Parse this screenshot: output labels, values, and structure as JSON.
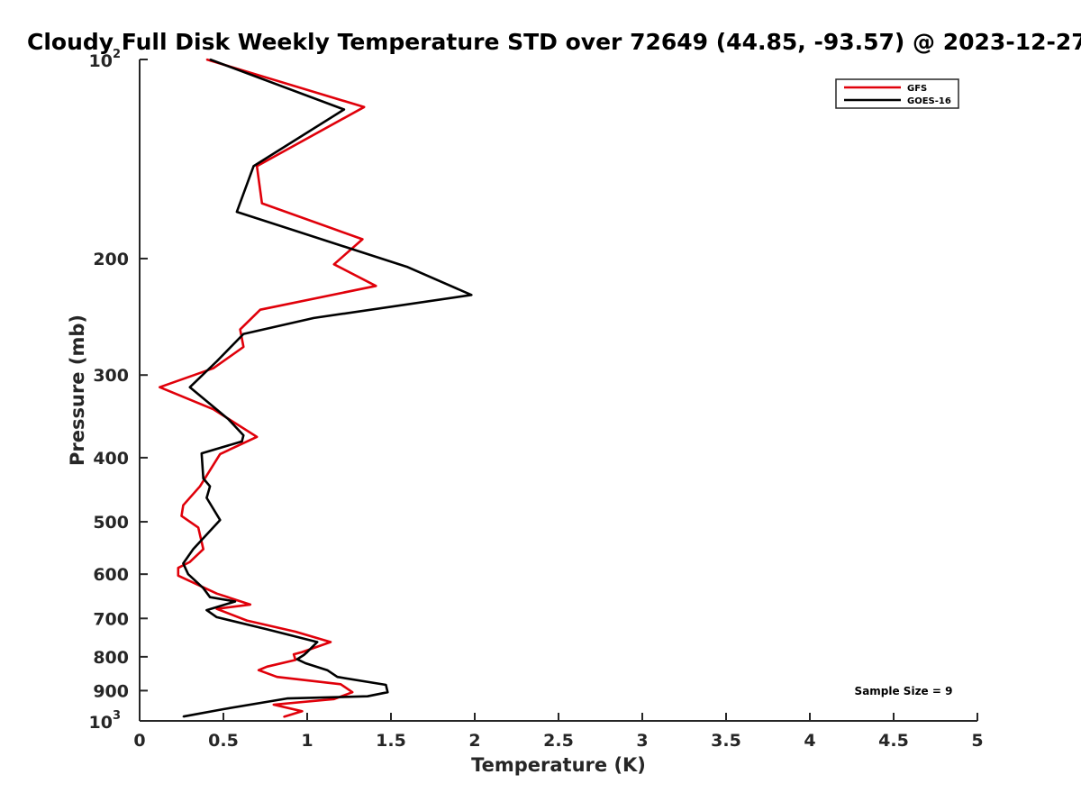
{
  "chart_data": {
    "type": "line",
    "title": "Cloudy Full Disk Weekly Temperature STD over 72649 (44.85, -93.57) @ 2023-12-27",
    "xlabel": "Temperature (K)",
    "ylabel": "Pressure (mb)",
    "xlim": [
      0,
      5
    ],
    "ylim": [
      100,
      1000
    ],
    "y_scale": "log",
    "y_reversed": true,
    "grid": false,
    "legend_position": "top-right",
    "x_ticks": [
      "0",
      "0.5",
      "1",
      "1.5",
      "2",
      "2.5",
      "3",
      "3.5",
      "4",
      "4.5",
      "5"
    ],
    "x_tick_values": [
      0,
      0.5,
      1,
      1.5,
      2,
      2.5,
      3,
      3.5,
      4,
      4.5,
      5
    ],
    "y_ticks": [
      {
        "value": 100,
        "base": "10",
        "exp": "2"
      },
      {
        "value": 200,
        "label": "200"
      },
      {
        "value": 300,
        "label": "300"
      },
      {
        "value": 400,
        "label": "400"
      },
      {
        "value": 500,
        "label": "500"
      },
      {
        "value": 600,
        "label": "600"
      },
      {
        "value": 700,
        "label": "700"
      },
      {
        "value": 800,
        "label": "800"
      },
      {
        "value": 900,
        "label": "900"
      },
      {
        "value": 1000,
        "base": "10",
        "exp": "3"
      }
    ],
    "annotation": "Sample Size = 9",
    "series": [
      {
        "name": "GFS",
        "color": "#e0000a",
        "points": [
          [
            0.4,
            100
          ],
          [
            1.34,
            118
          ],
          [
            0.7,
            145
          ],
          [
            0.73,
            165
          ],
          [
            1.33,
            187
          ],
          [
            1.16,
            204
          ],
          [
            1.41,
            220
          ],
          [
            0.72,
            239
          ],
          [
            0.6,
            256
          ],
          [
            0.62,
            272
          ],
          [
            0.44,
            293
          ],
          [
            0.12,
            313
          ],
          [
            0.44,
            338
          ],
          [
            0.7,
            372
          ],
          [
            0.48,
            395
          ],
          [
            0.36,
            442
          ],
          [
            0.26,
            472
          ],
          [
            0.25,
            490
          ],
          [
            0.35,
            510
          ],
          [
            0.38,
            550
          ],
          [
            0.3,
            575
          ],
          [
            0.23,
            587
          ],
          [
            0.23,
            603
          ],
          [
            0.46,
            642
          ],
          [
            0.66,
            667
          ],
          [
            0.46,
            677
          ],
          [
            0.64,
            705
          ],
          [
            0.93,
            733
          ],
          [
            1.14,
            760
          ],
          [
            0.97,
            787
          ],
          [
            0.92,
            793
          ],
          [
            0.93,
            809
          ],
          [
            0.76,
            828
          ],
          [
            0.71,
            838
          ],
          [
            0.82,
            858
          ],
          [
            1.2,
            880
          ],
          [
            1.27,
            905
          ],
          [
            1.16,
            927
          ],
          [
            0.8,
            945
          ],
          [
            0.97,
            967
          ],
          [
            0.86,
            986
          ]
        ]
      },
      {
        "name": "GOES-16",
        "color": "#000000",
        "points": [
          [
            0.42,
            100
          ],
          [
            1.22,
            119
          ],
          [
            0.68,
            145
          ],
          [
            0.58,
            170
          ],
          [
            1.6,
            206
          ],
          [
            1.98,
            227
          ],
          [
            1.04,
            246
          ],
          [
            0.62,
            260
          ],
          [
            0.46,
            286
          ],
          [
            0.3,
            313
          ],
          [
            0.53,
            350
          ],
          [
            0.62,
            370
          ],
          [
            0.61,
            378
          ],
          [
            0.37,
            394
          ],
          [
            0.38,
            430
          ],
          [
            0.42,
            442
          ],
          [
            0.4,
            460
          ],
          [
            0.48,
            497
          ],
          [
            0.32,
            550
          ],
          [
            0.26,
            578
          ],
          [
            0.29,
            600
          ],
          [
            0.38,
            630
          ],
          [
            0.42,
            650
          ],
          [
            0.57,
            660
          ],
          [
            0.4,
            680
          ],
          [
            0.46,
            697
          ],
          [
            0.76,
            727
          ],
          [
            1.06,
            760
          ],
          [
            1.0,
            787
          ],
          [
            0.98,
            795
          ],
          [
            0.94,
            807
          ],
          [
            0.99,
            818
          ],
          [
            1.12,
            838
          ],
          [
            1.18,
            858
          ],
          [
            1.47,
            882
          ],
          [
            1.48,
            905
          ],
          [
            1.36,
            918
          ],
          [
            0.88,
            925
          ],
          [
            0.5,
            960
          ],
          [
            0.26,
            985
          ]
        ]
      }
    ]
  }
}
